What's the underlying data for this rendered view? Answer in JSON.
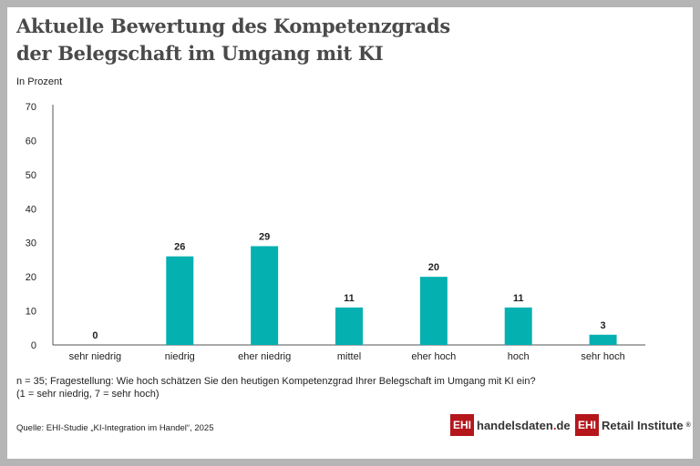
{
  "title_lines": [
    "Aktuelle Bewertung des Kompetenzgrads",
    "der Belegschaft im Umgang mit KI"
  ],
  "chart_data": {
    "type": "bar",
    "ylabel": "In Prozent",
    "categories": [
      "sehr niedrig",
      "niedrig",
      "eher niedrig",
      "mittel",
      "eher hoch",
      "hoch",
      "sehr hoch"
    ],
    "values": [
      0,
      26,
      29,
      11,
      20,
      11,
      3
    ],
    "ylim": [
      0,
      70
    ],
    "yticks": [
      0,
      10,
      20,
      30,
      40,
      50,
      60,
      70
    ],
    "grid": false,
    "bar_color": "#05b0b1"
  },
  "footnote_lines": [
    "n = 35; Fragestellung: Wie hoch schätzen Sie den heutigen Kompetenzgrad Ihrer Belegschaft im Umgang mit KI ein?",
    "(1 = sehr niedrig, 7 = sehr hoch)"
  ],
  "source": "Quelle: EHI-Studie „KI-Integration im Handel“, 2025",
  "logos": {
    "badge": "EHI",
    "site_name": "handelsdaten",
    "site_dot": ".",
    "site_tld": "de",
    "institute": "Retail Institute",
    "registered": "®"
  }
}
